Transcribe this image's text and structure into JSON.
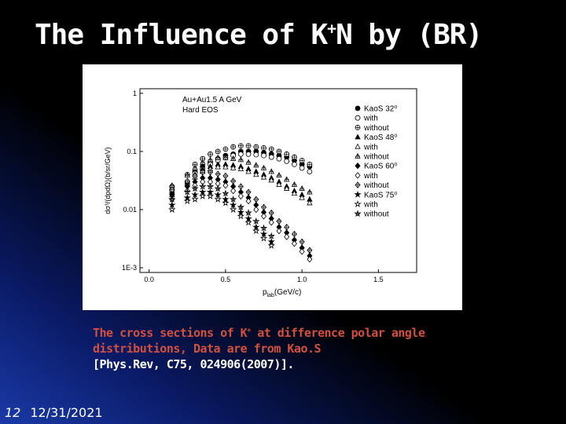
{
  "slide": {
    "title_parts": [
      "The Influence of K",
      "+",
      "N by (BR)"
    ],
    "caption": {
      "line1": [
        "The cross sections of K",
        "+",
        " at difference polar angle"
      ],
      "line2": "distributions, Data are from Kao.S",
      "line3": "[Phys.Rev, C75, 024906(2007)]."
    },
    "footer": {
      "page": "12",
      "date": "12/31/2021"
    }
  },
  "chart_data": {
    "type": "scatter",
    "x_label_parts": [
      "p",
      "lab",
      "(GeV/c)"
    ],
    "y_label": "dσ³/(dpdΩ)(b/sr/GeV)",
    "annotations": [
      "Au+Au1.5 A GeV",
      "Hard EOS"
    ],
    "log_y": true,
    "legend": "upper right",
    "xlim": [
      -0.06,
      1.75
    ],
    "ylim": [
      0.00083,
      1.2
    ],
    "xticks": [
      {
        "value": 0,
        "label": "0.0"
      },
      0.5,
      {
        "value": 1,
        "label": "1.0"
      },
      1.5
    ],
    "yticks": [
      {
        "value": 0.001,
        "label": "1E-3"
      },
      0.01,
      0.1,
      1
    ],
    "series": [
      {
        "name": "KaoS 32⁰",
        "color": "#000000",
        "marker": "circle",
        "fill": "filled",
        "x": [
          0.15,
          0.25,
          0.3,
          0.35,
          0.4,
          0.45,
          0.5,
          0.55,
          0.6,
          0.65,
          0.7,
          0.75,
          0.8,
          0.85,
          0.9,
          0.95,
          1.0,
          1.05
        ],
        "values": [
          0.022,
          0.03,
          0.045,
          0.055,
          0.065,
          0.075,
          0.085,
          0.09,
          0.1,
          0.1,
          0.1,
          0.095,
          0.09,
          0.085,
          0.08,
          0.07,
          0.06,
          0.055
        ]
      },
      {
        "name": "with",
        "color": "#000000",
        "marker": "circle",
        "fill": "open",
        "x": [
          0.15,
          0.25,
          0.3,
          0.35,
          0.4,
          0.45,
          0.5,
          0.55,
          0.6,
          0.65,
          0.7,
          0.75,
          0.8,
          0.85,
          0.9,
          0.95,
          1.0,
          1.05
        ],
        "values": [
          0.02,
          0.027,
          0.042,
          0.05,
          0.06,
          0.07,
          0.078,
          0.085,
          0.09,
          0.09,
          0.088,
          0.085,
          0.08,
          0.075,
          0.068,
          0.06,
          0.052,
          0.045
        ]
      },
      {
        "name": "without",
        "color": "#000000",
        "marker": "circle",
        "fill": "cross",
        "x": [
          0.15,
          0.25,
          0.3,
          0.35,
          0.4,
          0.45,
          0.5,
          0.55,
          0.6,
          0.65,
          0.7,
          0.75,
          0.8,
          0.85,
          0.9,
          0.95,
          1.0,
          1.05
        ],
        "values": [
          0.025,
          0.04,
          0.06,
          0.075,
          0.09,
          0.1,
          0.11,
          0.12,
          0.125,
          0.125,
          0.12,
          0.115,
          0.11,
          0.1,
          0.09,
          0.08,
          0.07,
          0.06
        ]
      },
      {
        "name": "KaoS 48⁰",
        "color": "#000000",
        "marker": "triangle",
        "fill": "filled",
        "x": [
          0.15,
          0.25,
          0.3,
          0.35,
          0.4,
          0.45,
          0.5,
          0.55,
          0.6,
          0.65,
          0.7,
          0.75,
          0.8,
          0.85,
          0.9,
          0.95,
          1.0,
          1.05
        ],
        "values": [
          0.02,
          0.03,
          0.04,
          0.05,
          0.055,
          0.06,
          0.06,
          0.058,
          0.055,
          0.05,
          0.045,
          0.04,
          0.035,
          0.03,
          0.025,
          0.021,
          0.018,
          0.015
        ]
      },
      {
        "name": "with",
        "color": "#000000",
        "marker": "triangle",
        "fill": "open",
        "x": [
          0.15,
          0.25,
          0.3,
          0.35,
          0.4,
          0.45,
          0.5,
          0.55,
          0.6,
          0.65,
          0.7,
          0.75,
          0.8,
          0.85,
          0.9,
          0.95,
          1.0,
          1.05
        ],
        "values": [
          0.018,
          0.027,
          0.036,
          0.045,
          0.05,
          0.054,
          0.054,
          0.052,
          0.05,
          0.045,
          0.04,
          0.036,
          0.032,
          0.027,
          0.023,
          0.019,
          0.016,
          0.013
        ]
      },
      {
        "name": "without",
        "color": "#000000",
        "marker": "triangle",
        "fill": "cross",
        "x": [
          0.15,
          0.25,
          0.3,
          0.35,
          0.4,
          0.45,
          0.5,
          0.55,
          0.6,
          0.65,
          0.7,
          0.75,
          0.8,
          0.85,
          0.9,
          0.95,
          1.0,
          1.05
        ],
        "values": [
          0.026,
          0.039,
          0.052,
          0.065,
          0.072,
          0.078,
          0.078,
          0.075,
          0.072,
          0.065,
          0.058,
          0.052,
          0.045,
          0.039,
          0.033,
          0.027,
          0.023,
          0.02
        ]
      },
      {
        "name": "KaoS 60⁰",
        "color": "#000000",
        "marker": "diamond",
        "fill": "filled",
        "x": [
          0.15,
          0.25,
          0.3,
          0.35,
          0.4,
          0.45,
          0.5,
          0.55,
          0.6,
          0.65,
          0.7,
          0.75,
          0.8,
          0.85,
          0.9,
          0.95,
          1.0,
          1.05
        ],
        "values": [
          0.018,
          0.025,
          0.03,
          0.035,
          0.035,
          0.033,
          0.03,
          0.025,
          0.02,
          0.016,
          0.012,
          0.009,
          0.007,
          0.005,
          0.004,
          0.003,
          0.0022,
          0.0016
        ]
      },
      {
        "name": "with",
        "color": "#000000",
        "marker": "diamond",
        "fill": "open",
        "x": [
          0.15,
          0.25,
          0.3,
          0.35,
          0.4,
          0.45,
          0.5,
          0.55,
          0.6,
          0.65,
          0.7,
          0.75,
          0.8,
          0.85,
          0.9,
          0.95,
          1.0,
          1.05
        ],
        "values": [
          0.015,
          0.021,
          0.026,
          0.03,
          0.03,
          0.028,
          0.026,
          0.021,
          0.017,
          0.014,
          0.01,
          0.0077,
          0.006,
          0.0043,
          0.0034,
          0.0026,
          0.0019,
          0.0014
        ]
      },
      {
        "name": "without",
        "color": "#000000",
        "marker": "diamond",
        "fill": "cross",
        "x": [
          0.15,
          0.25,
          0.3,
          0.35,
          0.4,
          0.45,
          0.5,
          0.55,
          0.6,
          0.65,
          0.7,
          0.75,
          0.8,
          0.85,
          0.9,
          0.95,
          1.0,
          1.05
        ],
        "values": [
          0.022,
          0.031,
          0.038,
          0.044,
          0.044,
          0.041,
          0.038,
          0.031,
          0.025,
          0.02,
          0.015,
          0.011,
          0.0088,
          0.0063,
          0.005,
          0.0038,
          0.0028,
          0.002
        ]
      },
      {
        "name": "KaoS 75⁰",
        "color": "#000000",
        "marker": "star",
        "fill": "filled",
        "x": [
          0.15,
          0.25,
          0.3,
          0.35,
          0.4,
          0.45,
          0.5,
          0.55,
          0.6,
          0.65,
          0.7,
          0.75,
          0.8
        ],
        "values": [
          0.012,
          0.016,
          0.018,
          0.02,
          0.02,
          0.018,
          0.015,
          0.012,
          0.009,
          0.007,
          0.005,
          0.0038,
          0.0028
        ]
      },
      {
        "name": "with",
        "color": "#000000",
        "marker": "star",
        "fill": "open",
        "x": [
          0.15,
          0.25,
          0.3,
          0.35,
          0.4,
          0.45,
          0.5,
          0.55,
          0.6,
          0.65,
          0.7,
          0.75,
          0.8
        ],
        "values": [
          0.01,
          0.014,
          0.015,
          0.017,
          0.017,
          0.015,
          0.013,
          0.01,
          0.0077,
          0.006,
          0.0043,
          0.0032,
          0.0024
        ]
      },
      {
        "name": "without",
        "color": "#000000",
        "marker": "star",
        "fill": "cross",
        "x": [
          0.15,
          0.25,
          0.3,
          0.35,
          0.4,
          0.45,
          0.5,
          0.55,
          0.6,
          0.65,
          0.7,
          0.75,
          0.8
        ],
        "values": [
          0.015,
          0.02,
          0.023,
          0.025,
          0.025,
          0.023,
          0.019,
          0.015,
          0.011,
          0.0088,
          0.0063,
          0.0048,
          0.0035
        ]
      }
    ]
  }
}
